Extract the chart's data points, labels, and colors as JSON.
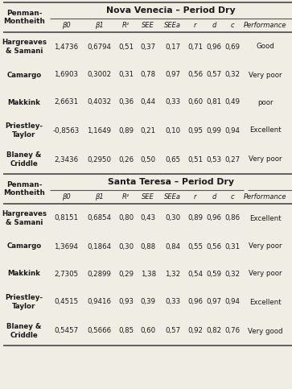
{
  "section1_title": "Nova Venecia – Period Dry",
  "section2_title": "Santa Teresa – Period Dry",
  "col_header": [
    "β0",
    "β1",
    "R²",
    "SEE",
    "SEEa",
    "r",
    "d",
    "c",
    "Performance"
  ],
  "row_header_label": "Penman-\nMontheith",
  "rows1": [
    [
      "Hargreaves\n& Samani",
      "1,4736",
      "0,6794",
      "0,51",
      "0,37",
      "0,17",
      "0,71",
      "0,96",
      "0,69",
      "Good"
    ],
    [
      "Camargo",
      "1,6903",
      "0,3002",
      "0,31",
      "0,78",
      "0,97",
      "0,56",
      "0,57",
      "0,32",
      "Very poor"
    ],
    [
      "Makkink",
      "2,6631",
      "0,4032",
      "0,36",
      "0,44",
      "0,33",
      "0,60",
      "0,81",
      "0,49",
      "poor"
    ],
    [
      "Priestley-\nTaylor",
      "-0,8563",
      "1,1649",
      "0,89",
      "0,21",
      "0,10",
      "0,95",
      "0,99",
      "0,94",
      "Excellent"
    ],
    [
      "Blaney &\nCriddle",
      "2,3436",
      "0,2950",
      "0,26",
      "0,50",
      "0,65",
      "0,51",
      "0,53",
      "0,27",
      "Very poor"
    ]
  ],
  "rows2": [
    [
      "Hargreaves\n& Samani",
      "0,8151",
      "0,6854",
      "0,80",
      "0,43",
      "0,30",
      "0,89",
      "0,96",
      "0,86",
      "Excellent"
    ],
    [
      "Camargo",
      "1,3694",
      "0,1864",
      "0,30",
      "0,88",
      "0,84",
      "0,55",
      "0,56",
      "0,31",
      "Very poor"
    ],
    [
      "Makkink",
      "2,7305",
      "0,2899",
      "0,29",
      "1,38",
      "1,32",
      "0,54",
      "0,59",
      "0,32",
      "Very poor"
    ],
    [
      "Priestley-\nTaylor",
      "0,4515",
      "0,9416",
      "0,93",
      "0,39",
      "0,33",
      "0,96",
      "0,97",
      "0,94",
      "Excellent"
    ],
    [
      "Blaney &\nCriddle",
      "0,5457",
      "0,5666",
      "0,85",
      "0,60",
      "0,57",
      "0,92",
      "0,82",
      "0,76",
      "Very good"
    ]
  ],
  "bg_color": "#f0ede4",
  "text_color": "#1a1a1a",
  "line_color": "#555555",
  "figsize": [
    3.63,
    4.83
  ],
  "dpi": 100
}
